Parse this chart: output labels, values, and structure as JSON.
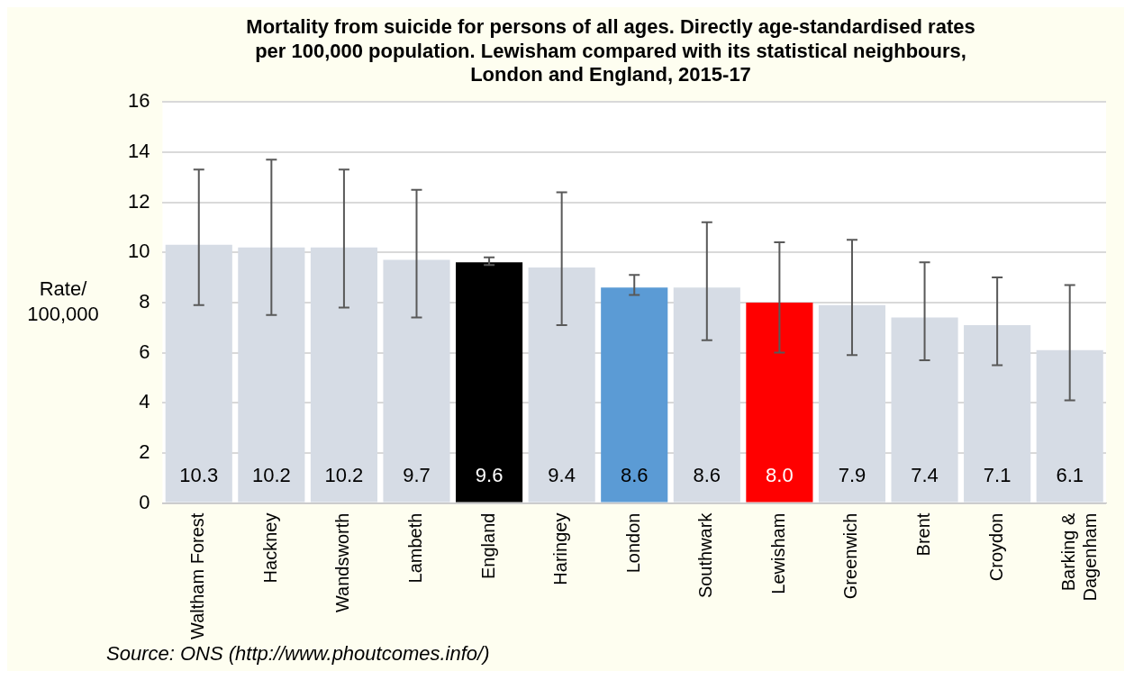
{
  "chart_data": {
    "type": "bar",
    "title": "Mortality from suicide for persons of all ages. Directly age-standardised rates per 100,000 population. Lewisham compared with its statistical neighbours, London and England, 2015-17",
    "ylabel": "Rate/ 100,000",
    "categories": [
      "Waltham Forest",
      "Hackney",
      "Wandsworth",
      "Lambeth",
      "England",
      "Haringey",
      "London",
      "Southwark",
      "Lewisham",
      "Greenwich",
      "Brent",
      "Croydon",
      "Barking & Dagenham"
    ],
    "values": [
      10.3,
      10.2,
      10.2,
      9.7,
      9.6,
      9.4,
      8.6,
      8.6,
      8.0,
      7.9,
      7.4,
      7.1,
      6.1
    ],
    "value_labels": [
      "10.3",
      "10.2",
      "10.2",
      "9.7",
      "9.6",
      "9.4",
      "8.6",
      "8.6",
      "8.0",
      "7.9",
      "7.4",
      "7.1",
      "6.1"
    ],
    "colors": [
      "#d6dce5",
      "#d6dce5",
      "#d6dce5",
      "#d6dce5",
      "#000000",
      "#d6dce5",
      "#5b9bd5",
      "#d6dce5",
      "#ff0000",
      "#d6dce5",
      "#d6dce5",
      "#d6dce5",
      "#d6dce5"
    ],
    "errors": [
      [
        7.9,
        13.3
      ],
      [
        7.5,
        13.7
      ],
      [
        7.8,
        13.3
      ],
      [
        7.4,
        12.5
      ],
      [
        9.5,
        9.8
      ],
      [
        7.1,
        12.4
      ],
      [
        8.3,
        9.1
      ],
      [
        6.5,
        11.2
      ],
      [
        6.0,
        10.4
      ],
      [
        5.9,
        10.5
      ],
      [
        5.7,
        9.6
      ],
      [
        5.5,
        9.0
      ],
      [
        4.1,
        8.7
      ]
    ],
    "ylim": [
      0,
      16
    ],
    "yticks": [
      0,
      2,
      4,
      6,
      8,
      10,
      12,
      14,
      16
    ],
    "grid": "y",
    "legend": false,
    "annotations": [
      "Source: ONS (http://www.phoutcomes.info/)"
    ]
  }
}
